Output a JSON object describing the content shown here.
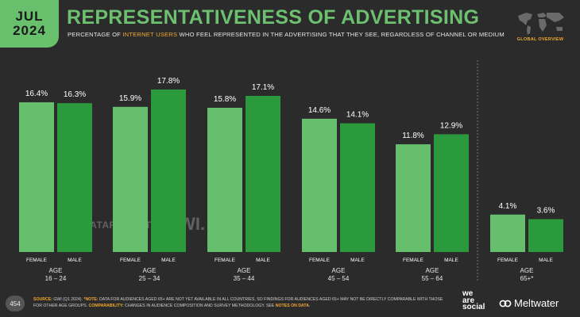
{
  "header": {
    "month": "JUL",
    "year": "2024",
    "title": "REPRESENTATIVENESS OF ADVERTISING",
    "subtitle_pre": "PERCENTAGE OF ",
    "subtitle_hl": "INTERNET USERS",
    "subtitle_post": " WHO FEEL REPRESENTED IN THE ADVERTISING THAT THEY SEE, REGARDLESS OF CHANNEL OR MEDIUM",
    "map_label": "GLOBAL OVERVIEW"
  },
  "colors": {
    "female": "#66bf6c",
    "male": "#2a9a3c",
    "accent": "#f0a830",
    "background": "#2b2b2b"
  },
  "chart_data": {
    "type": "bar",
    "ylim": [
      0,
      20
    ],
    "groups": [
      {
        "age_label": "AGE",
        "range": "16 – 24",
        "bars": [
          {
            "label": "FEMALE",
            "value": 16.4,
            "text": "16.4%"
          },
          {
            "label": "MALE",
            "value": 16.3,
            "text": "16.3%"
          }
        ]
      },
      {
        "age_label": "AGE",
        "range": "25 – 34",
        "bars": [
          {
            "label": "FEMALE",
            "value": 15.9,
            "text": "15.9%"
          },
          {
            "label": "MALE",
            "value": 17.8,
            "text": "17.8%"
          }
        ]
      },
      {
        "age_label": "AGE",
        "range": "35 – 44",
        "bars": [
          {
            "label": "FEMALE",
            "value": 15.8,
            "text": "15.8%"
          },
          {
            "label": "MALE",
            "value": 17.1,
            "text": "17.1%"
          }
        ]
      },
      {
        "age_label": "AGE",
        "range": "45 – 54",
        "bars": [
          {
            "label": "FEMALE",
            "value": 14.6,
            "text": "14.6%"
          },
          {
            "label": "MALE",
            "value": 14.1,
            "text": "14.1%"
          }
        ]
      },
      {
        "age_label": "AGE",
        "range": "55 – 64",
        "bars": [
          {
            "label": "FEMALE",
            "value": 11.8,
            "text": "11.8%"
          },
          {
            "label": "MALE",
            "value": 12.9,
            "text": "12.9%"
          }
        ]
      },
      {
        "age_label": "AGE",
        "range": "65+*",
        "bars": [
          {
            "label": "FEMALE",
            "value": 4.1,
            "text": "4.1%"
          },
          {
            "label": "MALE",
            "value": 3.6,
            "text": "3.6%"
          }
        ]
      }
    ]
  },
  "watermark": {
    "left": "DATAREPORTAL",
    "right": "GWI."
  },
  "footer": {
    "page_number": "454",
    "source_label": "SOURCE:",
    "source_text": " GWI (Q1 2024). ",
    "note_label": "*NOTE:",
    "note_text": " DATA FOR AUDIENCES AGED 65+ ARE NOT YET AVAILABLE IN ALL COUNTRIES, SO FINDINGS FOR AUDIENCES AGED 65+ MAY NOT BE DIRECTLY COMPARABLE WITH THOSE FOR OTHER AGE GROUPS. ",
    "comp_label": "COMPARABILITY:",
    "comp_text": " CHANGES IN AUDIENCE COMPOSITION AND SURVEY METHODOLOGY. SEE ",
    "notes_link": "NOTES ON DATA",
    "end": "."
  },
  "brands": {
    "was_line1": "we",
    "was_line2": "are",
    "was_line3": "social",
    "meltwater": "Meltwater"
  }
}
